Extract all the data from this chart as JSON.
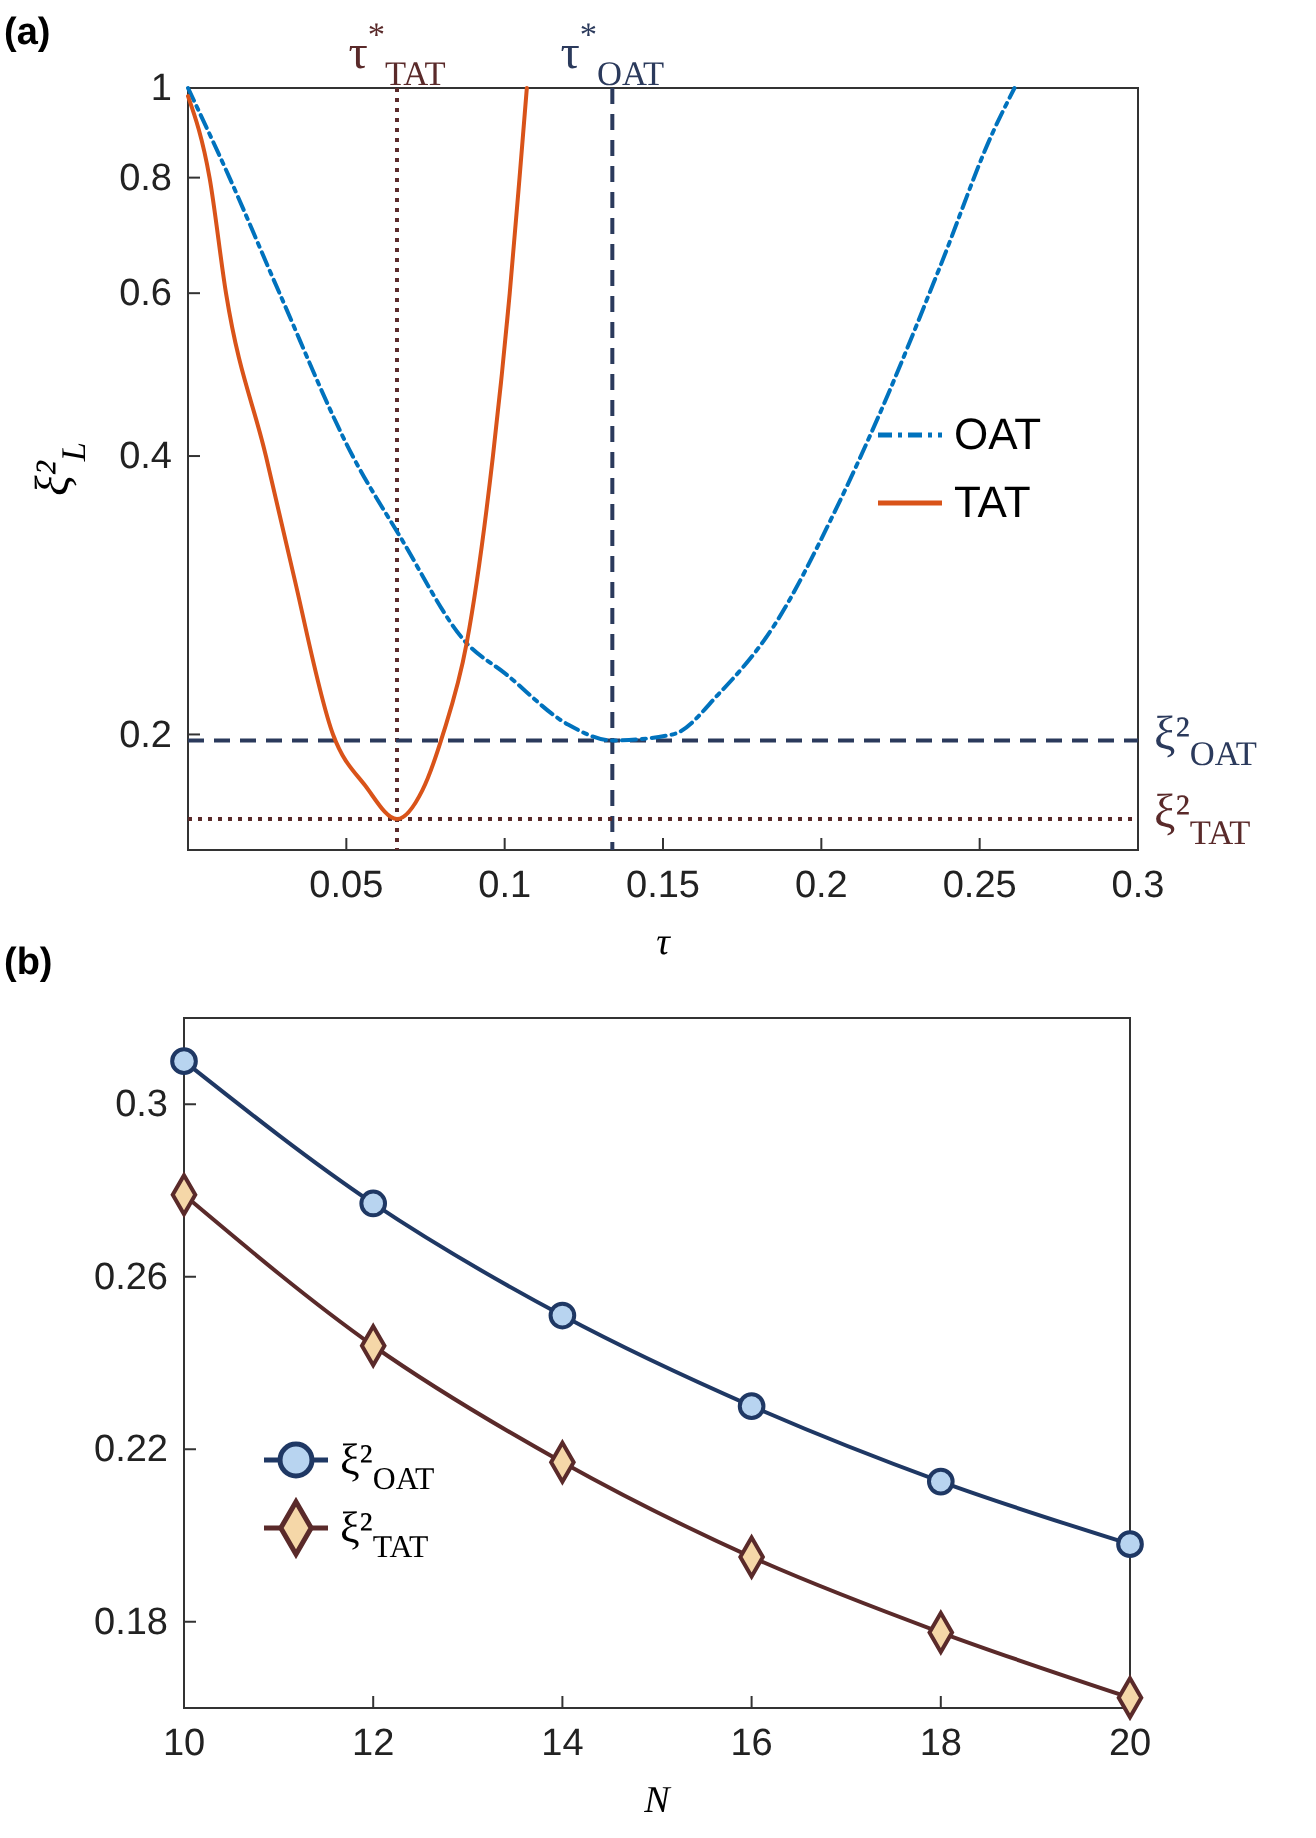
{
  "chart_data": [
    {
      "type": "line",
      "annotations": [
        "(a)"
      ],
      "xlabel": "τ",
      "ylabel": "ξ²$_{L}$",
      "log": "y",
      "xlim": [
        0,
        0.3
      ],
      "ylim": [
        0.15,
        1
      ],
      "xticks": [
        {
          "value": 0,
          "label": null
        },
        0.05,
        0.1,
        0.15,
        0.2,
        0.25,
        0.3
      ],
      "yticks": [
        0.2,
        0.4,
        0.6,
        0.8,
        1
      ],
      "legend": "right",
      "marker": "none",
      "grid": false,
      "series": [
        {
          "name": "OAT",
          "color": "#0072bd",
          "line_style": "dashed",
          "x": [
            0,
            0.0131,
            0.0289,
            0.052,
            0.0668,
            0.088,
            0.1,
            0.12,
            0.134,
            0.153,
            0.168,
            0.185,
            0.204,
            0.2185,
            0.2375,
            0.254,
            0.261
          ],
          "values": [
            1,
            0.8,
            0.6,
            0.4,
            0.328,
            0.251,
            0.233,
            0.205,
            0.197,
            0.2,
            0.222,
            0.262,
            0.347,
            0.445,
            0.641,
            0.893,
            1
          ]
        },
        {
          "name": "TAT",
          "color": "#d95319",
          "line_style": "solid",
          "x": [
            0,
            0.0068,
            0.012,
            0.0246,
            0.0331,
            0.0458,
            0.056,
            0.066,
            0.074,
            0.0805,
            0.088,
            0.0963,
            0.1016,
            0.1047,
            0.107
          ],
          "values": [
            0.98,
            0.8,
            0.6,
            0.4,
            0.3,
            0.2,
            0.176,
            0.162,
            0.174,
            0.2,
            0.251,
            0.4,
            0.6,
            0.8,
            1
          ]
        }
      ],
      "ref_lines": [
        {
          "axis": "x",
          "value": 0.066,
          "label": "τ$^{*}$$_{TAT}$",
          "color": "#5a2a2a",
          "line_style": "dotted"
        },
        {
          "axis": "x",
          "value": 0.134,
          "label": "τ$^{*}$$_{OAT}$",
          "color": "#2b3a5c",
          "line_style": "dashed"
        },
        {
          "axis": "y",
          "value": 0.197,
          "label": "ξ²$_{OAT}$",
          "color": "#2b3a5c",
          "line_style": "dashed"
        },
        {
          "axis": "y",
          "value": 0.162,
          "label": "ξ²$_{TAT}$",
          "color": "#5a2a2a",
          "line_style": "dotted"
        }
      ]
    },
    {
      "type": "line",
      "annotations": [
        "(b)"
      ],
      "xlabel": "N",
      "x": [
        10,
        12,
        14,
        16,
        18,
        20
      ],
      "xlim": [
        10,
        20
      ],
      "ylim": [
        0.16,
        0.32
      ],
      "xticks": [
        10,
        12,
        14,
        16,
        18,
        20
      ],
      "yticks": [
        0.18,
        0.22,
        0.26,
        0.3
      ],
      "legend": "bottom left",
      "grid": false,
      "series": [
        {
          "name": "ξ²$_{OAT}$",
          "color": "#1f3864",
          "marker": "circle",
          "values": [
            0.31,
            0.277,
            0.251,
            0.23,
            0.2125,
            0.198
          ]
        },
        {
          "name": "ξ²$_{TAT}$",
          "color": "#5a2a2a",
          "marker": "diamond",
          "values": [
            0.279,
            0.244,
            0.217,
            0.195,
            0.1775,
            0.1624
          ]
        }
      ]
    }
  ]
}
